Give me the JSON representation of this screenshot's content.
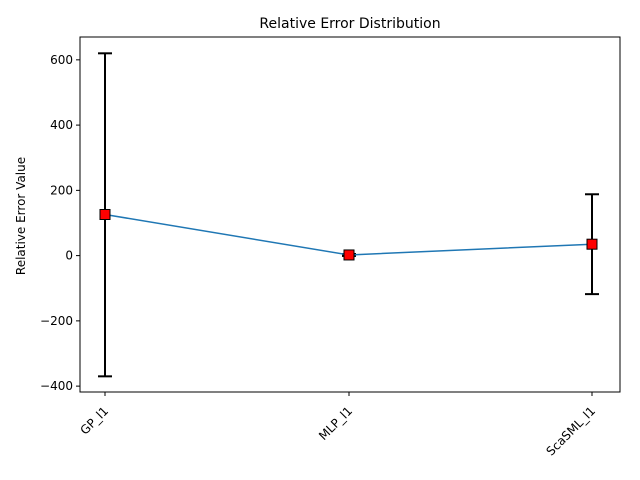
{
  "chart_data": {
    "type": "line",
    "title": "Relative Error Distribution",
    "xlabel": "",
    "ylabel": "Relative Error Value",
    "categories": [
      "GP_l1",
      "MLP_l1",
      "ScaSML_l1"
    ],
    "series": [
      {
        "values": [
          126,
          2,
          35
        ],
        "error_low": [
          -370,
          -1,
          -118
        ],
        "error_high": [
          620,
          5,
          188
        ],
        "line_color": "#1f77b4",
        "marker_color": "#ff0000",
        "errorbar_color": "#000000"
      }
    ],
    "ylim": [
      -418,
      670
    ],
    "yticks": [
      -400,
      -200,
      0,
      200,
      400,
      600
    ],
    "grid": false,
    "legend": false
  }
}
